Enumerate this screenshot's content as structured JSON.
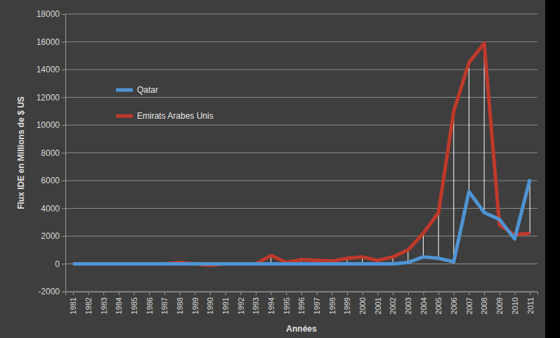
{
  "chart_data": {
    "type": "line",
    "x_label": "Années",
    "y_label": "Flux IDE en Millions de $ US",
    "categories": [
      "1981",
      "1982",
      "1983",
      "1984",
      "1985",
      "1986",
      "1987",
      "1988",
      "1989",
      "1990",
      "1991",
      "1992",
      "1993",
      "1994",
      "1995",
      "1996",
      "1997",
      "1998",
      "1999",
      "2000",
      "2001",
      "2002",
      "2003",
      "2004",
      "2005",
      "2006",
      "2007",
      "2008",
      "2009",
      "2010",
      "2011"
    ],
    "series": [
      {
        "name": "Qatar",
        "color": "#4f94d4",
        "values": [
          0,
          0,
          0,
          0,
          0,
          0,
          0,
          0,
          0,
          0,
          0,
          0,
          0,
          0,
          0,
          0,
          0,
          0,
          0,
          0,
          0,
          0,
          100,
          500,
          400,
          150,
          5200,
          3700,
          3200,
          1800,
          6100
        ]
      },
      {
        "name": "Emirats Arabes Unis",
        "color": "#c0392b",
        "values": [
          0,
          0,
          0,
          0,
          0,
          0,
          0,
          100,
          0,
          -100,
          0,
          0,
          0,
          600,
          100,
          300,
          250,
          200,
          400,
          500,
          250,
          500,
          1000,
          2200,
          3700,
          11000,
          14500,
          15900,
          2800,
          2100,
          2200
        ]
      }
    ],
    "ylim": [
      -2000,
      18000
    ],
    "yticks": [
      -2000,
      0,
      2000,
      4000,
      6000,
      8000,
      10000,
      12000,
      14000,
      16000,
      18000
    ],
    "grid": true,
    "legend": "upper left"
  }
}
